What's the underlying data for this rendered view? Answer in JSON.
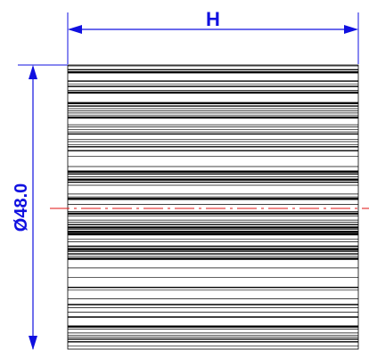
{
  "drawing": {
    "width_label": "H",
    "diameter_label": "Ø48.0",
    "colors": {
      "dimension": "#1010e0",
      "centerline": "#e01010",
      "hatch": "#000000",
      "background": "#ffffff"
    }
  }
}
